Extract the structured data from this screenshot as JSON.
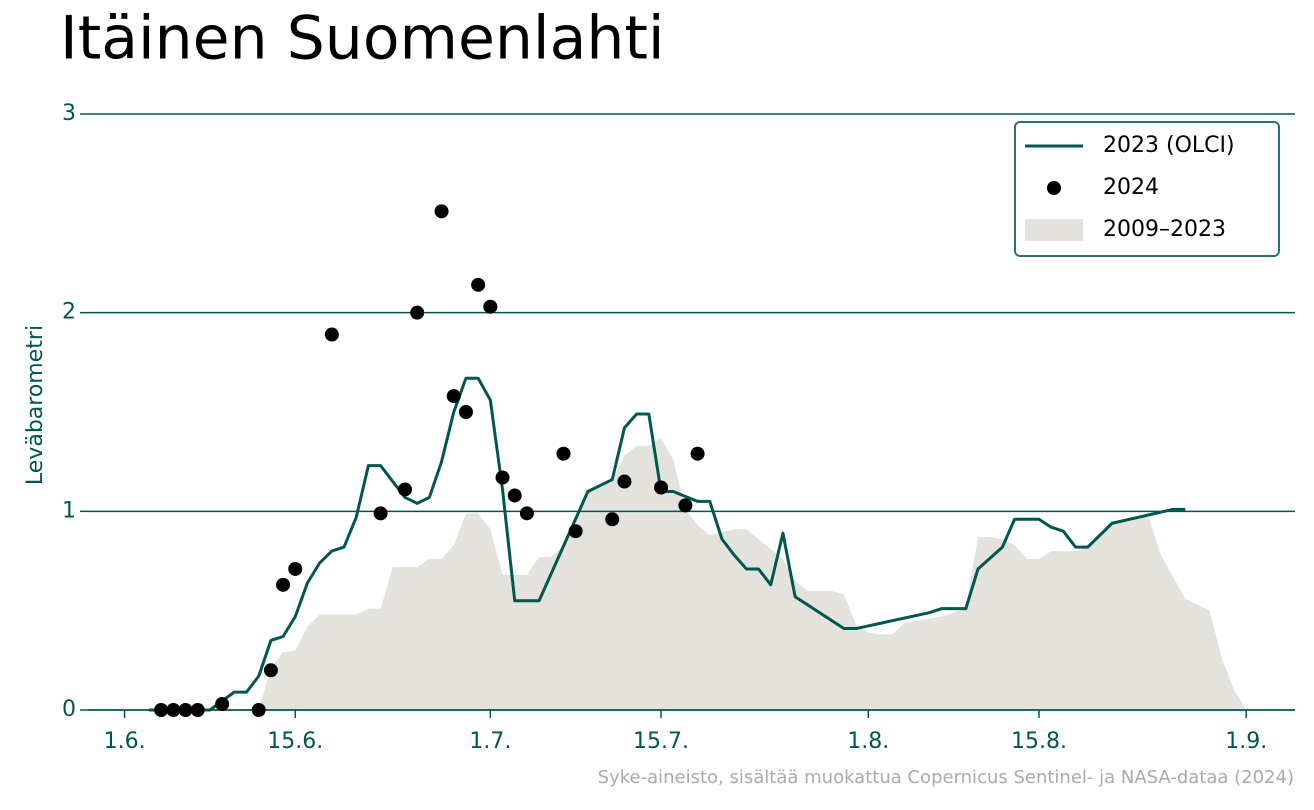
{
  "chart_data": {
    "type": "line",
    "title": "Itäinen Suomenlahti",
    "y_label": "Leväbarometri",
    "source": "Syke-aineisto, sisältää muokattua Copernicus Sentinel- ja NASA-dataa (2024)",
    "xlim": [
      "05-29",
      "09-05"
    ],
    "xticks": [
      {
        "value": "06-01",
        "label": "1.6."
      },
      {
        "value": "06-15",
        "label": "15.6."
      },
      {
        "value": "07-01",
        "label": "1.7."
      },
      {
        "value": "07-15",
        "label": "15.7."
      },
      {
        "value": "08-01",
        "label": "1.8."
      },
      {
        "value": "08-15",
        "label": "15.8."
      },
      {
        "value": "09-01",
        "label": "1.9."
      }
    ],
    "ylim": [
      0,
      3
    ],
    "yticks": [
      0,
      1,
      2,
      3
    ],
    "grid": true,
    "legend": "upper right",
    "series": [
      {
        "name": "2023 (OLCI)",
        "type": "line",
        "color": "#00574f",
        "x": [
          "06-03",
          "06-08",
          "06-10",
          "06-11",
          "06-12",
          "06-13",
          "06-14",
          "06-15",
          "06-16",
          "06-17",
          "06-18",
          "06-19",
          "06-20",
          "06-21",
          "06-22",
          "06-23",
          "06-24",
          "06-25",
          "06-26",
          "06-27",
          "06-28",
          "06-29",
          "06-30",
          "07-01",
          "07-02",
          "07-03",
          "07-05",
          "07-09",
          "07-11",
          "07-12",
          "07-13",
          "07-14",
          "07-15",
          "07-16",
          "07-18",
          "07-19",
          "07-20",
          "07-21",
          "07-22",
          "07-23",
          "07-24",
          "07-25",
          "07-26",
          "07-30",
          "07-31",
          "08-06",
          "08-07",
          "08-09",
          "08-10",
          "08-12",
          "08-13",
          "08-15",
          "08-16",
          "08-17",
          "08-18",
          "08-19",
          "08-21",
          "08-26",
          "08-27"
        ],
        "values": [
          0,
          0,
          0.09,
          0.09,
          0.17,
          0.35,
          0.37,
          0.47,
          0.64,
          0.74,
          0.8,
          0.82,
          0.97,
          1.23,
          1.23,
          1.15,
          1.07,
          1.04,
          1.07,
          1.25,
          1.5,
          1.67,
          1.67,
          1.56,
          1.11,
          0.55,
          0.55,
          1.1,
          1.16,
          1.42,
          1.49,
          1.49,
          1.1,
          1.1,
          1.05,
          1.05,
          0.86,
          0.78,
          0.71,
          0.71,
          0.63,
          0.89,
          0.57,
          0.41,
          0.41,
          0.49,
          0.51,
          0.51,
          0.71,
          0.82,
          0.96,
          0.96,
          0.92,
          0.9,
          0.82,
          0.82,
          0.94,
          1.01,
          1.01
        ]
      },
      {
        "name": "2024",
        "type": "scatter",
        "color": "#000000",
        "x": [
          "06-04",
          "06-05",
          "06-06",
          "06-07",
          "06-09",
          "06-12",
          "06-13",
          "06-14",
          "06-15",
          "06-18",
          "06-22",
          "06-24",
          "06-25",
          "06-27",
          "06-28",
          "06-29",
          "06-30",
          "07-01",
          "07-02",
          "07-03",
          "07-04",
          "07-07",
          "07-08",
          "07-11",
          "07-12",
          "07-15",
          "07-17",
          "07-18"
        ],
        "values": [
          0,
          0,
          0,
          0,
          0.03,
          0,
          0.2,
          0.63,
          0.71,
          1.89,
          0.99,
          1.11,
          2.0,
          2.51,
          1.58,
          1.5,
          2.14,
          2.03,
          1.17,
          1.08,
          0.99,
          1.29,
          0.9,
          0.96,
          1.15,
          1.12,
          1.03,
          1.29
        ]
      },
      {
        "name": "2009–2023",
        "type": "area",
        "color": "#e3e2dc",
        "x": [
          "06-12",
          "06-13",
          "06-14",
          "06-15",
          "06-16",
          "06-17",
          "06-20",
          "06-21",
          "06-22",
          "06-23",
          "06-25",
          "06-26",
          "06-27",
          "06-28",
          "06-29",
          "06-30",
          "07-01",
          "07-02",
          "07-04",
          "07-05",
          "07-06",
          "07-07",
          "07-09",
          "07-11",
          "07-12",
          "07-13",
          "07-14",
          "07-15",
          "07-16",
          "07-17",
          "07-18",
          "07-19",
          "07-21",
          "07-22",
          "07-23",
          "07-25",
          "07-26",
          "07-27",
          "07-29",
          "07-30",
          "07-31",
          "08-01",
          "08-02",
          "08-03",
          "08-04",
          "08-07",
          "08-09",
          "08-10",
          "08-11",
          "08-12",
          "08-13",
          "08-14",
          "08-15",
          "08-16",
          "08-18",
          "08-19",
          "08-21",
          "08-23",
          "08-24",
          "08-25",
          "08-27",
          "08-29",
          "08-30",
          "08-31",
          "09-01"
        ],
        "values": [
          0,
          0.21,
          0.29,
          0.3,
          0.42,
          0.48,
          0.48,
          0.51,
          0.51,
          0.72,
          0.72,
          0.76,
          0.76,
          0.83,
          0.99,
          0.99,
          0.91,
          0.68,
          0.68,
          0.77,
          0.77,
          0.83,
          1.11,
          1.16,
          1.28,
          1.33,
          1.33,
          1.37,
          1.26,
          1.01,
          0.93,
          0.88,
          0.91,
          0.91,
          0.86,
          0.76,
          0.65,
          0.6,
          0.6,
          0.58,
          0.43,
          0.39,
          0.38,
          0.38,
          0.44,
          0.47,
          0.51,
          0.87,
          0.87,
          0.86,
          0.83,
          0.76,
          0.76,
          0.8,
          0.8,
          0.82,
          0.95,
          0.97,
          0.97,
          0.78,
          0.56,
          0.5,
          0.26,
          0.1,
          0
        ]
      }
    ]
  }
}
